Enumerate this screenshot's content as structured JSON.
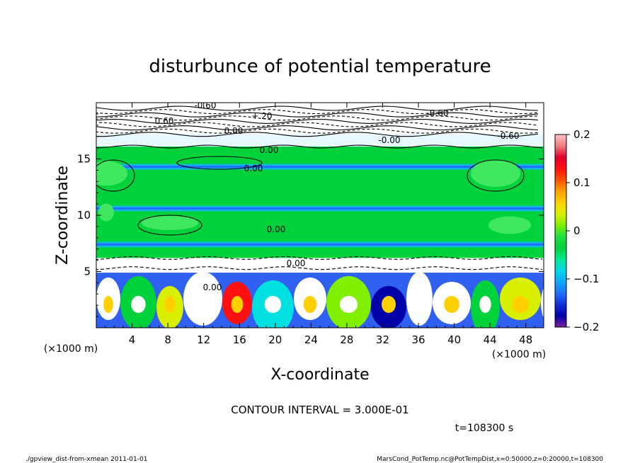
{
  "chart_data": {
    "type": "heatmap",
    "title": "disturbunce of potential temperature",
    "xlabel": "X-coordinate",
    "ylabel": "Z-coordinate",
    "x_unit": "(×1000 m)",
    "y_unit": "(×1000 m)",
    "xlim": [
      0,
      50
    ],
    "ylim": [
      0,
      20
    ],
    "x_ticks": [
      4,
      8,
      12,
      16,
      20,
      24,
      28,
      32,
      36,
      40,
      44,
      48
    ],
    "y_ticks": [
      5,
      10,
      15
    ],
    "colorbar": {
      "range": [
        -0.2,
        0.2
      ],
      "tick_values": [
        0.2,
        0.1,
        0,
        -0.1,
        -0.2
      ],
      "tick_labels": [
        "0.2",
        "0.1",
        "0",
        "−0.1",
        "−0.2"
      ],
      "colors": [
        "#7a1fa0",
        "#0000a8",
        "#1030d8",
        "#1e70ff",
        "#10a8f8",
        "#00d8e8",
        "#00e890",
        "#00d23c",
        "#20e040",
        "#80f000",
        "#d8f000",
        "#ffd000",
        "#ffa000",
        "#ff5000",
        "#ff1010",
        "#e00030",
        "#f08080",
        "#ffc0c8"
      ]
    },
    "contour_labels": [
      "-0.60",
      "+.20",
      "-0.60",
      "0.60",
      "0.00",
      "-0.00",
      "-0.60",
      "0.00",
      "0.00",
      "0.00",
      "0.00",
      "0.00"
    ],
    "contour_interval_text": "CONTOUR INTERVAL = 3.000E-01",
    "time_text": "t=108300 s",
    "footer_left": "./gpview_dist-from-xmean  2011-01-01",
    "footer_right": "MarsCond_PotTemp.nc@PotTempDist,x=0:50000,z=0:20000,t=108300"
  }
}
